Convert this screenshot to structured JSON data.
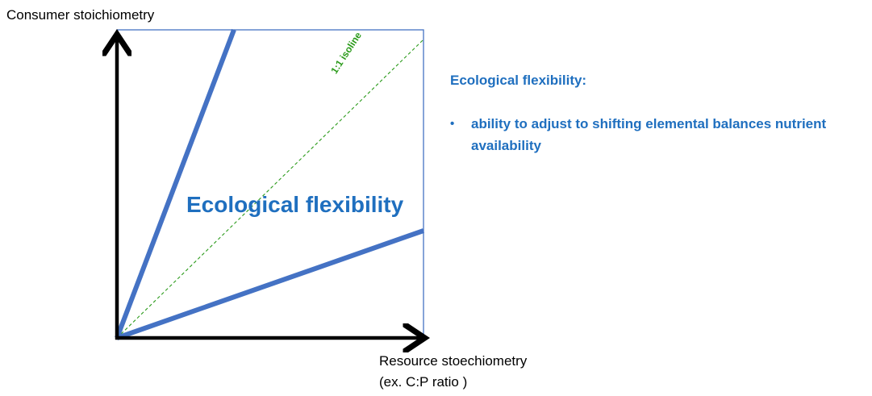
{
  "axes": {
    "y_label": "Consumer stoichiometry",
    "x_label_line1": "Resource stoechiometry",
    "x_label_line2": "(ex. C:P ratio )"
  },
  "diagram": {
    "center_label": "Ecological flexibility",
    "isoline_label": "1:1 isoline",
    "colors": {
      "boundary_lines": "#4472c4",
      "frame": "#4472c4",
      "isoline": "#2a9a1a",
      "label_text": "#1f6fbf",
      "axes": "#000000"
    }
  },
  "side_panel": {
    "title": "Ecological flexibility:",
    "bullets": [
      "ability to adjust to shifting elemental balances nutrient availability"
    ]
  }
}
